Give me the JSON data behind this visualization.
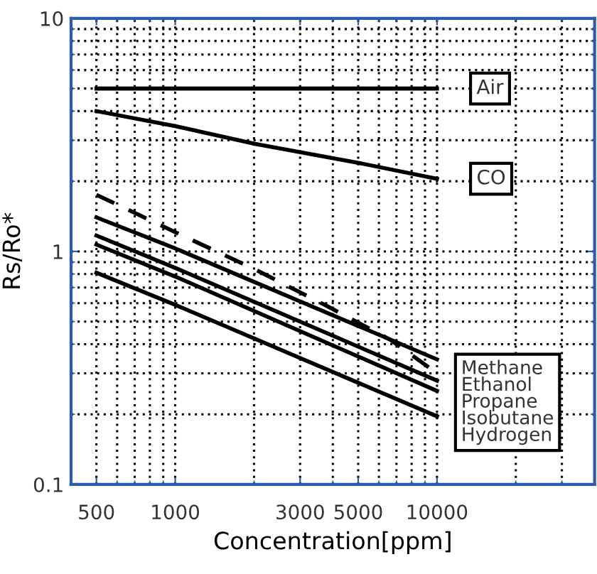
{
  "chart_data": {
    "type": "line",
    "xlabel": "Concentration[ppm]",
    "ylabel": "Rs/Ro*",
    "log": "xy",
    "xlim": [
      400,
      40000
    ],
    "ylim": [
      0.1,
      10
    ],
    "xticks": [
      500,
      1000,
      3000,
      5000,
      10000
    ],
    "yticks": [
      0.1,
      1,
      10
    ],
    "grid": true,
    "legend": false,
    "marker": "none",
    "series": [
      {
        "name": "Air",
        "color": "#000000",
        "x": [
          500,
          10000
        ],
        "values": [
          5,
          5
        ]
      },
      {
        "name": "CO",
        "color": "#000000",
        "x": [
          500,
          1000,
          2000,
          5000,
          10000
        ],
        "values": [
          4.0,
          3.45,
          2.9,
          2.4,
          2.05
        ]
      },
      {
        "color": "#000000",
        "line_style": "dashed",
        "x": [
          500,
          1100,
          2050,
          3720,
          6650,
          10000
        ],
        "values": [
          1.75,
          1.15,
          0.83,
          0.59,
          0.417,
          0.3
        ]
      },
      {
        "color": "#000000",
        "x": [
          500,
          1000,
          10000
        ],
        "values": [
          1.4,
          1.03,
          0.344
        ]
      },
      {
        "color": "#000000",
        "x": [
          500,
          1000,
          10000
        ],
        "values": [
          1.17,
          0.85,
          0.279
        ]
      },
      {
        "color": "#000000",
        "x": [
          500,
          1000,
          10000
        ],
        "values": [
          1.07,
          0.78,
          0.252
        ]
      },
      {
        "color": "#000000",
        "x": [
          500,
          1000,
          10000
        ],
        "values": [
          0.81,
          0.59,
          0.196
        ]
      }
    ],
    "annotations": [
      "Methane\nEthanol\nPropane\nIsobutane\nHydrogen"
    ]
  }
}
